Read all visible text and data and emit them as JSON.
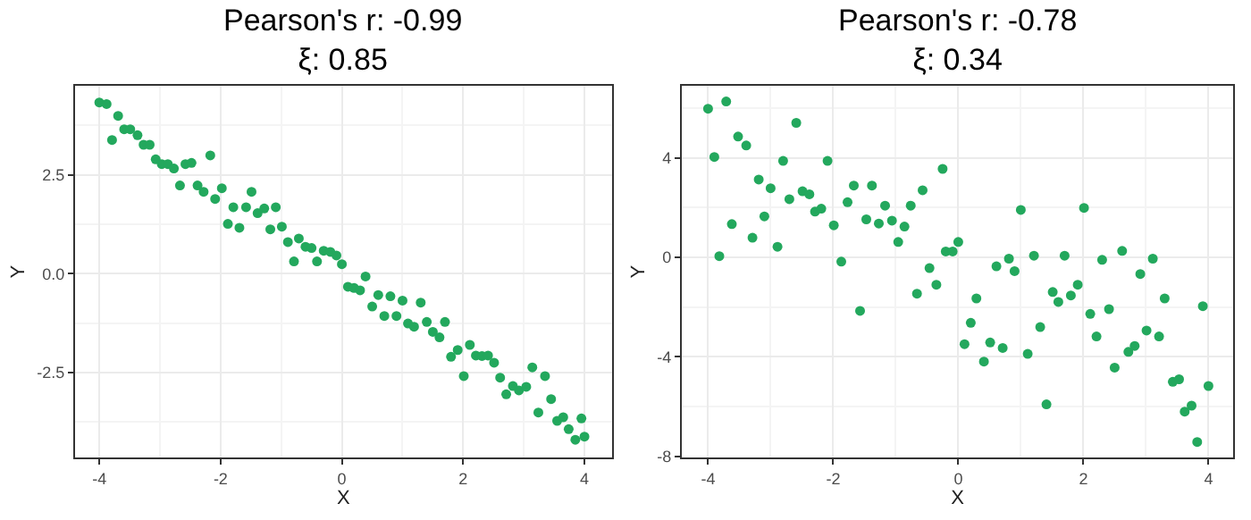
{
  "chart_data": [
    {
      "type": "scatter",
      "title": "Pearson's r: -0.99\nξ: 0.85",
      "xlabel": "X",
      "ylabel": "Y",
      "color": "#23a85d",
      "marker": "circle",
      "grid": true,
      "x": [
        -4.0,
        -3.88,
        -3.79,
        -3.69,
        -3.59,
        -3.49,
        -3.37,
        -3.27,
        -3.17,
        -3.07,
        -2.97,
        -2.87,
        -2.77,
        -2.67,
        -2.58,
        -2.48,
        -2.38,
        -2.28,
        -2.17,
        -2.09,
        -1.98,
        -1.88,
        -1.79,
        -1.69,
        -1.58,
        -1.49,
        -1.39,
        -1.28,
        -1.18,
        -1.09,
        -0.99,
        -0.89,
        -0.79,
        -0.71,
        -0.6,
        -0.5,
        -0.41,
        -0.3,
        -0.19,
        -0.09,
        0.0,
        0.1,
        0.2,
        0.3,
        0.39,
        0.5,
        0.6,
        0.7,
        0.8,
        0.9,
        1.0,
        1.09,
        1.19,
        1.3,
        1.4,
        1.5,
        1.61,
        1.7,
        1.8,
        1.91,
        2.01,
        2.11,
        2.21,
        2.31,
        2.41,
        2.51,
        2.61,
        2.71,
        2.82,
        2.92,
        3.04,
        3.14,
        3.24,
        3.35,
        3.45,
        3.55,
        3.65,
        3.74,
        3.85,
        3.95,
        4.0
      ],
      "values": [
        4.33,
        4.29,
        3.38,
        3.99,
        3.65,
        3.65,
        3.5,
        3.26,
        3.26,
        2.89,
        2.77,
        2.77,
        2.66,
        2.23,
        2.77,
        2.8,
        2.23,
        2.07,
        2.99,
        1.89,
        2.16,
        1.26,
        1.68,
        1.16,
        1.68,
        2.07,
        1.53,
        1.65,
        1.12,
        1.68,
        1.19,
        0.8,
        0.31,
        0.89,
        0.68,
        0.65,
        0.31,
        0.58,
        0.55,
        0.46,
        0.24,
        -0.33,
        -0.36,
        -0.42,
        -0.07,
        -0.83,
        -0.54,
        -1.07,
        -0.57,
        -1.07,
        -0.68,
        -1.26,
        -1.34,
        -0.73,
        -1.22,
        -1.47,
        -1.61,
        -1.22,
        -2.1,
        -1.93,
        -2.59,
        -1.8,
        -2.07,
        -2.08,
        -2.07,
        -2.25,
        -2.63,
        -3.05,
        -2.84,
        -2.95,
        -2.86,
        -2.37,
        -3.51,
        -2.59,
        -3.17,
        -3.72,
        -3.63,
        -3.93,
        -4.2,
        -3.66,
        -4.12
      ],
      "xlim": [
        -4.4,
        4.45
      ],
      "ylim": [
        -4.65,
        4.75
      ],
      "xticks": [
        -4,
        -2,
        0,
        2,
        4
      ],
      "yticks": [
        {
          "value": -2.5,
          "label": "-2.5"
        },
        {
          "value": 0,
          "label": "0.0"
        },
        {
          "value": 2.5,
          "label": "2.5"
        }
      ]
    },
    {
      "type": "scatter",
      "title": "Pearson's r: -0.78\nξ: 0.34",
      "xlabel": "X",
      "ylabel": "Y",
      "color": "#23a85d",
      "marker": "circle",
      "grid": true,
      "x": [
        -4.0,
        -3.9,
        -3.82,
        -3.71,
        -3.62,
        -3.52,
        -3.39,
        -3.29,
        -3.19,
        -3.1,
        -3.0,
        -2.89,
        -2.8,
        -2.7,
        -2.59,
        -2.49,
        -2.38,
        -2.29,
        -2.19,
        -2.09,
        -1.99,
        -1.87,
        -1.77,
        -1.67,
        -1.57,
        -1.47,
        -1.38,
        -1.27,
        -1.17,
        -1.06,
        -0.96,
        -0.86,
        -0.76,
        -0.66,
        -0.57,
        -0.46,
        -0.35,
        -0.25,
        -0.2,
        -0.09,
        0.0,
        0.1,
        0.2,
        0.29,
        0.41,
        0.51,
        0.61,
        0.71,
        0.81,
        0.9,
        1.0,
        1.11,
        1.21,
        1.31,
        1.41,
        1.51,
        1.6,
        1.7,
        1.8,
        1.91,
        2.01,
        2.11,
        2.21,
        2.3,
        2.41,
        2.5,
        2.62,
        2.72,
        2.82,
        2.91,
        3.01,
        3.11,
        3.21,
        3.3,
        3.43,
        3.53,
        3.62,
        3.73,
        3.82,
        3.91,
        4.0
      ],
      "values": [
        5.98,
        4.04,
        0.05,
        6.27,
        1.34,
        4.86,
        4.5,
        0.79,
        3.13,
        1.65,
        2.78,
        0.43,
        3.88,
        2.34,
        5.41,
        2.66,
        2.54,
        1.84,
        1.96,
        3.88,
        1.29,
        -0.17,
        2.22,
        2.89,
        -2.15,
        1.53,
        2.89,
        1.36,
        2.08,
        1.48,
        0.62,
        1.24,
        2.08,
        -1.46,
        2.7,
        -0.43,
        -1.1,
        3.56,
        0.24,
        0.24,
        0.62,
        -3.49,
        -2.63,
        -1.65,
        -4.19,
        -3.42,
        -0.36,
        -3.64,
        -0.05,
        -0.55,
        1.91,
        -3.88,
        0.07,
        -2.8,
        -5.91,
        -1.39,
        -1.79,
        0.07,
        -1.53,
        -1.1,
        1.99,
        -2.27,
        -3.18,
        -0.1,
        -2.08,
        -4.43,
        0.26,
        -3.8,
        -3.56,
        -0.67,
        -2.94,
        -0.05,
        -3.18,
        -1.65,
        -5.0,
        -4.9,
        -6.2,
        -5.96,
        -7.42,
        -1.96,
        -5.17
      ],
      "xlim": [
        -4.42,
        4.4
      ],
      "ylim": [
        -8.05,
        6.9
      ],
      "xticks": [
        -4,
        -2,
        0,
        2,
        4
      ],
      "yticks": [
        -8,
        -4,
        0,
        4
      ]
    }
  ]
}
